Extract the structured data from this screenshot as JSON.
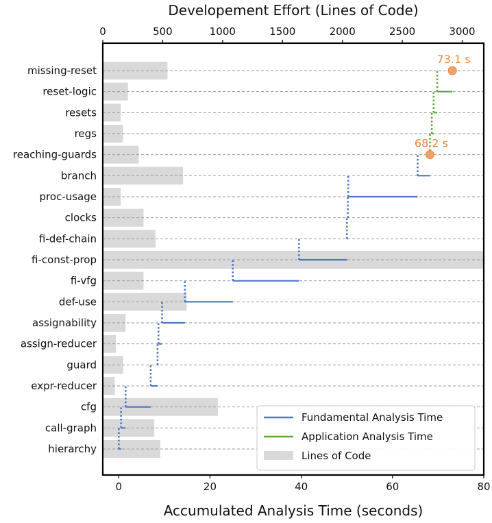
{
  "chart_data": {
    "type": "bar+step-line",
    "categories": [
      "hierarchy",
      "call-graph",
      "cfg",
      "expr-reducer",
      "guard",
      "assign-reducer",
      "assignability",
      "def-use",
      "fi-vfg",
      "fi-const-prop",
      "fi-def-chain",
      "clocks",
      "proc-usage",
      "branch",
      "reaching-guards",
      "regs",
      "resets",
      "reset-logic",
      "missing-reset"
    ],
    "loc_values": [
      480,
      430,
      960,
      100,
      170,
      110,
      190,
      700,
      340,
      3180,
      440,
      340,
      150,
      670,
      300,
      170,
      150,
      210,
      540
    ],
    "cumulative_time_fundamental": [
      0.0,
      0.5,
      1.5,
      7.0,
      8.5,
      8.7,
      9.5,
      14.5,
      25.0,
      39.5,
      50.0,
      50.2,
      50.3,
      65.5,
      68.2
    ],
    "cumulative_time_application": [
      68.2,
      68.6,
      69.0,
      69.8,
      73.1
    ],
    "xlabel": "Accumulated Analysis Time (seconds)",
    "xlim": [
      -3.5,
      80
    ],
    "x_ticks": [
      0,
      20,
      40,
      60,
      80
    ],
    "top_xlabel": "Developement Effort (Lines of Code)",
    "top_xlim": [
      0,
      3180
    ],
    "top_ticks": [
      0,
      500,
      1000,
      1500,
      2000,
      2500,
      3000
    ],
    "annotations": [
      {
        "text": "68.2 s",
        "x": 68.2,
        "category": "reaching-guards"
      },
      {
        "text": "73.1 s",
        "x": 73.1,
        "category": "missing-reset"
      }
    ],
    "series": [
      {
        "name": "Fundamental Analysis Time",
        "color": "#4a77c4"
      },
      {
        "name": "Application Analysis Time",
        "color": "#5aa83a"
      },
      {
        "name": "Lines of Code",
        "color": "#d9d9d9"
      }
    ],
    "legend_position": "lower-right",
    "grid": "horizontal dashed"
  }
}
